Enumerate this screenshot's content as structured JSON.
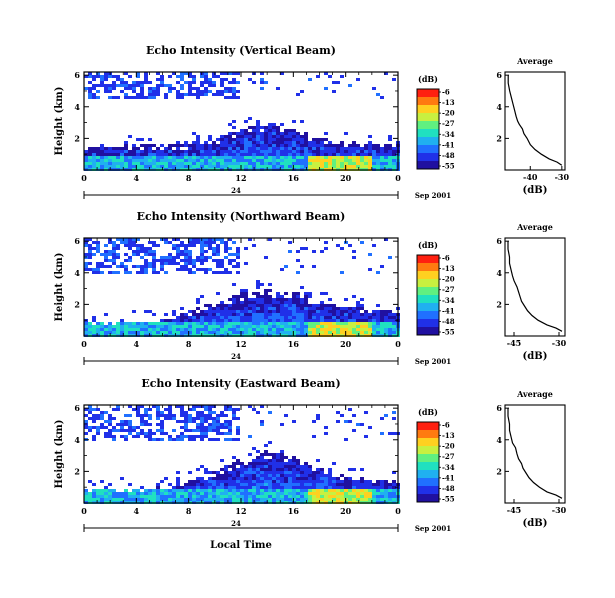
{
  "x_axis_label": "Local Time",
  "date_label": "Sep 2001",
  "day_label": "24",
  "colorbar": {
    "unit_label": "(dB)",
    "ticks": [
      "-6",
      "-13",
      "-20",
      "-27",
      "-34",
      "-41",
      "-48",
      "-55"
    ],
    "colors": [
      "#ff2010",
      "#ff7a10",
      "#ffd020",
      "#c8f040",
      "#60f080",
      "#20e0c0",
      "#20b0f0",
      "#2070ff",
      "#2030e8",
      "#2010a0"
    ]
  },
  "chart_data": [
    {
      "type": "heatmap",
      "title": "Echo Intensity (Vertical Beam)",
      "ylabel": "Height (km)",
      "x_ticks": [
        "0",
        "4",
        "8",
        "12",
        "16",
        "20",
        "0"
      ],
      "y_ticks": [
        "2",
        "4",
        "6"
      ],
      "xlim": [
        0,
        24
      ],
      "ylim": [
        0,
        6.2
      ],
      "color_scale_db": [
        -55,
        -6
      ],
      "boundary_layer_top_km": [
        [
          0,
          1.4
        ],
        [
          4,
          1.6
        ],
        [
          8,
          1.6
        ],
        [
          10,
          1.9
        ],
        [
          12,
          2.6
        ],
        [
          14,
          3.0
        ],
        [
          16,
          2.6
        ],
        [
          18,
          2.0
        ],
        [
          20,
          1.8
        ],
        [
          24,
          1.6
        ]
      ],
      "scatter_layer_km": [
        4.4,
        6.2
      ]
    },
    {
      "type": "heatmap",
      "title": "Echo Intensity (Northward Beam)",
      "ylabel": "Height (km)",
      "x_ticks": [
        "0",
        "4",
        "8",
        "12",
        "16",
        "20",
        "0"
      ],
      "y_ticks": [
        "2",
        "4",
        "6"
      ],
      "xlim": [
        0,
        24
      ],
      "ylim": [
        0,
        6.2
      ],
      "color_scale_db": [
        -55,
        -6
      ],
      "boundary_layer_top_km": [
        [
          0,
          0.8
        ],
        [
          4,
          0.9
        ],
        [
          6,
          1.0
        ],
        [
          8,
          1.5
        ],
        [
          10,
          2.2
        ],
        [
          12,
          2.7
        ],
        [
          14,
          2.9
        ],
        [
          16,
          2.8
        ],
        [
          18,
          2.2
        ],
        [
          20,
          1.9
        ],
        [
          24,
          1.5
        ]
      ],
      "scatter_layer_km": [
        4.0,
        6.2
      ]
    },
    {
      "type": "heatmap",
      "title": "Echo Intensity (Eastward Beam)",
      "ylabel": "Height (km)",
      "x_ticks": [
        "0",
        "4",
        "8",
        "12",
        "16",
        "20",
        "0"
      ],
      "y_ticks": [
        "2",
        "4",
        "6"
      ],
      "xlim": [
        0,
        24
      ],
      "ylim": [
        0,
        6.2
      ],
      "color_scale_db": [
        -55,
        -6
      ],
      "boundary_layer_top_km": [
        [
          0,
          0.9
        ],
        [
          4,
          0.9
        ],
        [
          6,
          1.0
        ],
        [
          8,
          1.4
        ],
        [
          10,
          2.0
        ],
        [
          12,
          2.8
        ],
        [
          14,
          3.3
        ],
        [
          16,
          2.9
        ],
        [
          18,
          2.2
        ],
        [
          20,
          1.7
        ],
        [
          24,
          1.4
        ]
      ],
      "scatter_layer_km": [
        4.0,
        6.2
      ]
    },
    {
      "type": "line",
      "title": "Average",
      "xlabel": "(dB)",
      "x_ticks": [
        "-40",
        "-30"
      ],
      "y_ticks": [
        "2",
        "4",
        "6"
      ],
      "xlim": [
        -48,
        -29
      ],
      "ylim": [
        0,
        6.2
      ],
      "x": [
        -30.0,
        -31.5,
        -34.0,
        -36.5,
        -38.5,
        -40.0,
        -41.0,
        -42.0,
        -42.5,
        -43.5,
        -44.0,
        -44.5,
        -45.0,
        -45.5,
        -46.0,
        -46.5,
        -47.0,
        -47.0
      ],
      "y": [
        0.3,
        0.5,
        0.7,
        1.0,
        1.3,
        1.6,
        2.0,
        2.3,
        2.6,
        2.9,
        3.1,
        3.4,
        3.8,
        4.2,
        4.6,
        5.0,
        5.5,
        6.0
      ]
    },
    {
      "type": "line",
      "title": "Average",
      "xlabel": "(dB)",
      "x_ticks": [
        "-45",
        "-30"
      ],
      "y_ticks": [
        "2",
        "4",
        "6"
      ],
      "xlim": [
        -48,
        -28
      ],
      "ylim": [
        0,
        6.2
      ],
      "x": [
        -29.0,
        -31.0,
        -34.0,
        -37.0,
        -39.0,
        -40.5,
        -41.5,
        -42.5,
        -43.0,
        -43.5,
        -44.0,
        -45.0,
        -45.5,
        -46.0,
        -46.5,
        -46.5,
        -47.0,
        -47.0
      ],
      "y": [
        0.3,
        0.5,
        0.7,
        1.0,
        1.3,
        1.6,
        1.9,
        2.2,
        2.5,
        2.8,
        3.1,
        3.5,
        3.8,
        4.2,
        4.6,
        5.0,
        5.5,
        6.0
      ]
    },
    {
      "type": "line",
      "title": "Average",
      "xlabel": "(dB)",
      "x_ticks": [
        "-45",
        "-30"
      ],
      "y_ticks": [
        "2",
        "4",
        "6"
      ],
      "xlim": [
        -48,
        -28
      ],
      "ylim": [
        0,
        6.2
      ],
      "x": [
        -29.0,
        -31.0,
        -34.0,
        -36.5,
        -38.5,
        -40.0,
        -41.0,
        -42.0,
        -42.5,
        -43.5,
        -44.0,
        -44.5,
        -45.5,
        -46.0,
        -46.5,
        -46.5,
        -47.0,
        -47.0
      ],
      "y": [
        0.3,
        0.5,
        0.7,
        1.0,
        1.3,
        1.6,
        1.9,
        2.2,
        2.5,
        2.8,
        3.1,
        3.5,
        3.8,
        4.2,
        4.6,
        5.0,
        5.5,
        6.0
      ]
    }
  ]
}
